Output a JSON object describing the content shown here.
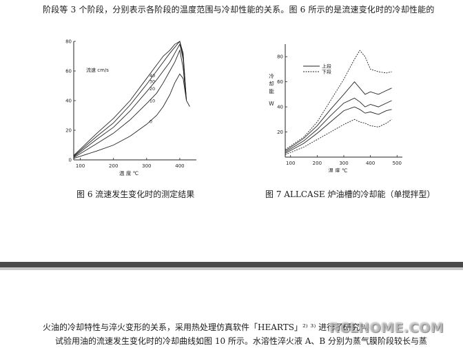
{
  "document": {
    "top_line": "阶段等 3 个阶段，分别表示各阶段的温度范围与冷却性能的关系。图 6 所示的是流速变化时的冷却性能的",
    "caption_fig6": "图 6  流速发生变化时的测定结果",
    "caption_fig7": "图 7 ALLCASE 炉油槽的冷却能（单搅拌型）",
    "body_line_1": "火油的冷却特性与淬火变形的关系，采用热处理仿真软件「HEARTS」²⁾ ³⁾ 进行了研究⁴⁾。",
    "body_line_2": "试验用油的流速发生变化时的冷却曲线如图 10 所示。水溶性淬火液 A、B 分别为蒸气膜阶段较长与蒸",
    "watermark": "RCLHOME.COM"
  },
  "chart_data": [
    {
      "type": "line",
      "figure": "fig6",
      "xlabel": "温  度  ℃",
      "ylabel": "冷却能  W",
      "annotation": "流速 cm/s",
      "x_ticks": [
        "100",
        "200",
        "300",
        "400"
      ],
      "y_ticks": [
        "0",
        "20",
        "40",
        "60",
        "80"
      ],
      "xlim": [
        80,
        450
      ],
      "ylim": [
        0,
        80
      ],
      "series": [
        {
          "name": "40",
          "x": [
            80,
            150,
            200,
            250,
            300,
            330,
            350,
            370,
            385,
            400,
            410,
            420
          ],
          "y": [
            3,
            18,
            28,
            40,
            55,
            64,
            70,
            74,
            78,
            80,
            72,
            40
          ]
        },
        {
          "name": "30",
          "x": [
            80,
            150,
            200,
            250,
            300,
            330,
            350,
            370,
            385,
            400,
            410,
            420
          ],
          "y": [
            2.5,
            16,
            25,
            37,
            51,
            60,
            66,
            72,
            76,
            80,
            70,
            40
          ]
        },
        {
          "name": "20",
          "x": [
            80,
            150,
            200,
            250,
            300,
            330,
            350,
            370,
            385,
            400,
            410,
            420
          ],
          "y": [
            2,
            14,
            22,
            33,
            46,
            54,
            60,
            66,
            72,
            78,
            68,
            40
          ]
        },
        {
          "name": "10",
          "x": [
            80,
            150,
            200,
            250,
            300,
            330,
            350,
            370,
            385,
            400,
            410,
            420
          ],
          "y": [
            1.5,
            11,
            18,
            27,
            38,
            45,
            52,
            60,
            66,
            74,
            62,
            40
          ]
        },
        {
          "name": "0",
          "x": [
            80,
            150,
            200,
            250,
            300,
            330,
            350,
            370,
            385,
            400,
            410,
            420,
            430
          ],
          "y": [
            1,
            6,
            10,
            16,
            24,
            30,
            36,
            44,
            52,
            58,
            55,
            40,
            36
          ]
        }
      ]
    },
    {
      "type": "line",
      "figure": "fig7",
      "xlabel": "温  度  ℃",
      "ylabel": "冷却能  W",
      "x_ticks": [
        "100",
        "200",
        "300",
        "400",
        "500"
      ],
      "y_ticks": [
        "20",
        "40",
        "60",
        "80"
      ],
      "xlim": [
        80,
        520
      ],
      "ylim": [
        0,
        90
      ],
      "legend": [
        "上段",
        "下段"
      ],
      "series": [
        {
          "name": "上段",
          "style": "solid",
          "x": [
            80,
            150,
            200,
            250,
            300,
            340,
            360,
            380,
            400,
            430,
            460,
            480
          ],
          "y": [
            5,
            15,
            25,
            38,
            50,
            60,
            55,
            50,
            52,
            50,
            53,
            55
          ]
        },
        {
          "name": "上段",
          "style": "solid",
          "x": [
            80,
            150,
            200,
            250,
            300,
            340,
            360,
            380,
            400,
            430,
            460,
            480
          ],
          "y": [
            4,
            13,
            22,
            33,
            43,
            47,
            44,
            40,
            42,
            40,
            43,
            45
          ]
        },
        {
          "name": "上段",
          "style": "solid",
          "x": [
            80,
            150,
            200,
            250,
            300,
            340,
            360,
            380,
            400,
            430,
            460,
            480
          ],
          "y": [
            3,
            11,
            19,
            28,
            37,
            40,
            38,
            35,
            36,
            34,
            37,
            38
          ]
        },
        {
          "name": "下段",
          "style": "dashed",
          "x": [
            80,
            150,
            200,
            250,
            300,
            340,
            360,
            380,
            400,
            430,
            460,
            480
          ],
          "y": [
            6,
            16,
            28,
            45,
            62,
            78,
            85,
            80,
            70,
            68,
            67,
            68
          ]
        },
        {
          "name": "下段",
          "style": "dashed",
          "x": [
            80,
            150,
            200,
            250,
            300,
            340,
            360,
            380,
            400,
            430,
            460,
            480
          ],
          "y": [
            2,
            8,
            14,
            20,
            26,
            30,
            28,
            27,
            25,
            24,
            27,
            30
          ]
        }
      ]
    }
  ]
}
